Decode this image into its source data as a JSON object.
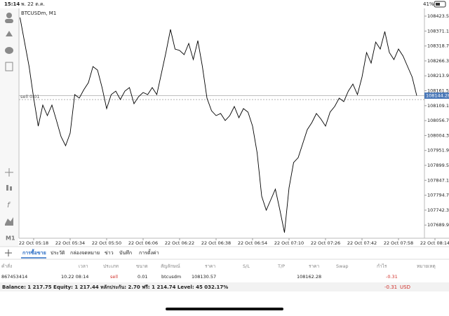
{
  "status_bar": {
    "time": "15:14",
    "date": "พ. 22 ต.ค.",
    "battery": "41%"
  },
  "chart_data": {
    "type": "line",
    "title": "BTCUSDm, M1",
    "categories": [
      null,
      null,
      null,
      "22 Oct 05:18",
      null,
      null,
      null,
      null,
      null,
      null,
      null,
      "22 Oct 05:34",
      null,
      null,
      null,
      null,
      null,
      null,
      null,
      "22 Oct 05:50",
      null,
      null,
      null,
      null,
      null,
      null,
      null,
      "22 Oct 06:06",
      null,
      null,
      null,
      null,
      null,
      null,
      null,
      "22 Oct 06:22",
      null,
      null,
      null,
      null,
      null,
      null,
      null,
      "22 Oct 06:38",
      null,
      null,
      null,
      null,
      null,
      null,
      null,
      "22 Oct 06:54",
      null,
      null,
      null,
      null,
      null,
      null,
      null,
      "22 Oct 07:10",
      null,
      null,
      null,
      null,
      null,
      null,
      null,
      "22 Oct 07:26",
      null,
      null,
      null,
      null,
      null,
      null,
      null,
      "22 Oct 07:42",
      null,
      null,
      null,
      null,
      null,
      null,
      null,
      "22 Oct 07:58",
      null,
      null,
      null,
      null,
      null,
      null,
      null,
      "22 Oct 08:14"
    ],
    "series": [
      {
        "color": "#000000",
        "values": [
          108418.6,
          108332.5,
          108246.4,
          108135.7,
          108037.3,
          108111.1,
          108074.2,
          108111.1,
          108057.0,
          108000.4,
          107968.4,
          108012.7,
          108148.0,
          108135.7,
          108165.2,
          108189.8,
          108246.4,
          108234.1,
          108172.6,
          108098.8,
          108148.0,
          108160.3,
          108130.8,
          108160.3,
          108172.6,
          108116.0,
          108140.6,
          108155.4,
          108148.0,
          108172.6,
          108148.0,
          108221.8,
          108295.6,
          108376.8,
          108307.9,
          108303.0,
          108288.2,
          108327.6,
          108271.0,
          108337.4,
          108246.4,
          108135.7,
          108091.4,
          108074.2,
          108081.6,
          108057.0,
          108074.2,
          108106.2,
          108066.8,
          108098.8,
          108086.5,
          108037.3,
          107943.8,
          107791.3,
          107742.1,
          107779.0,
          107815.9,
          107742.1,
          107663.4,
          107820.8,
          107909.4,
          107926.6,
          107975.8,
          108025.0,
          108049.6,
          108081.6,
          108061.9,
          108037.3,
          108086.5,
          108106.2,
          108135.7,
          108123.4,
          108160.3,
          108184.9,
          108148.0,
          108209.5,
          108295.6,
          108258.7,
          108332.5,
          108307.9,
          108369.4,
          108295.6,
          108271.0,
          108307.9,
          108283.3,
          108246.4,
          108209.5,
          108144.28,
          null,
          null,
          null,
          null
        ]
      }
    ],
    "ylim": [
      107643.7,
      108450.6
    ],
    "yticks": [
      108423.55,
      {
        "value": 108371.1,
        "label": "108371.10"
      },
      {
        "value": 108318.7,
        "label": "108318.70"
      },
      {
        "value": 108266.3,
        "label": "108266.30"
      },
      {
        "value": 108213.9,
        "label": "108213.90"
      },
      {
        "value": 108161.5,
        "label": "108161.50"
      },
      {
        "value": 108109.1,
        "label": "108109.10"
      },
      {
        "value": 108056.7,
        "label": "108056.70"
      },
      {
        "value": 108004.3,
        "label": "108004.30"
      },
      {
        "value": 107951.9,
        "label": "107951.90"
      },
      {
        "value": 107899.5,
        "label": "107899.50"
      },
      {
        "value": 107847.1,
        "label": "107847.10"
      },
      {
        "value": 107794.7,
        "label": "107794.70"
      },
      {
        "value": 107742.3,
        "label": "107742.30"
      },
      {
        "value": 107689.9,
        "label": "107689.90"
      }
    ],
    "current_price": 108144.28,
    "order_line_label": "sell 0.01"
  },
  "toolbar": {
    "timeframe": "M1"
  },
  "tabs": [
    "การซื้อขาย",
    "ประวัติ",
    "กล่องจดหมาย",
    "ข่าว",
    "บันทึก",
    "การตั้งค่า"
  ],
  "table": {
    "header": [
      "คำสั่ง",
      "เวลา",
      "ประเภท",
      "ขนาด",
      "สัญลักษณ์",
      "ราคา",
      "S/L",
      "T/P",
      "ราคา",
      "Swap",
      "กำไร",
      "หมายเหตุ"
    ],
    "rows": [
      {
        "order": "867453414",
        "time": "10.22 08:14",
        "type": "sell",
        "volume": "0.01",
        "symbol": "btcusdm",
        "price": 108130.57,
        "current_price": 108162.28,
        "profit": -0.31
      }
    ]
  },
  "footer": {
    "summary": "Balance: 1 217.75 Equity: 1 217.44 หลักประกัน: 2.70 ฟรี: 1 214.74 Level: 45 032.17%",
    "profit": -0.31,
    "currency": "USD"
  }
}
